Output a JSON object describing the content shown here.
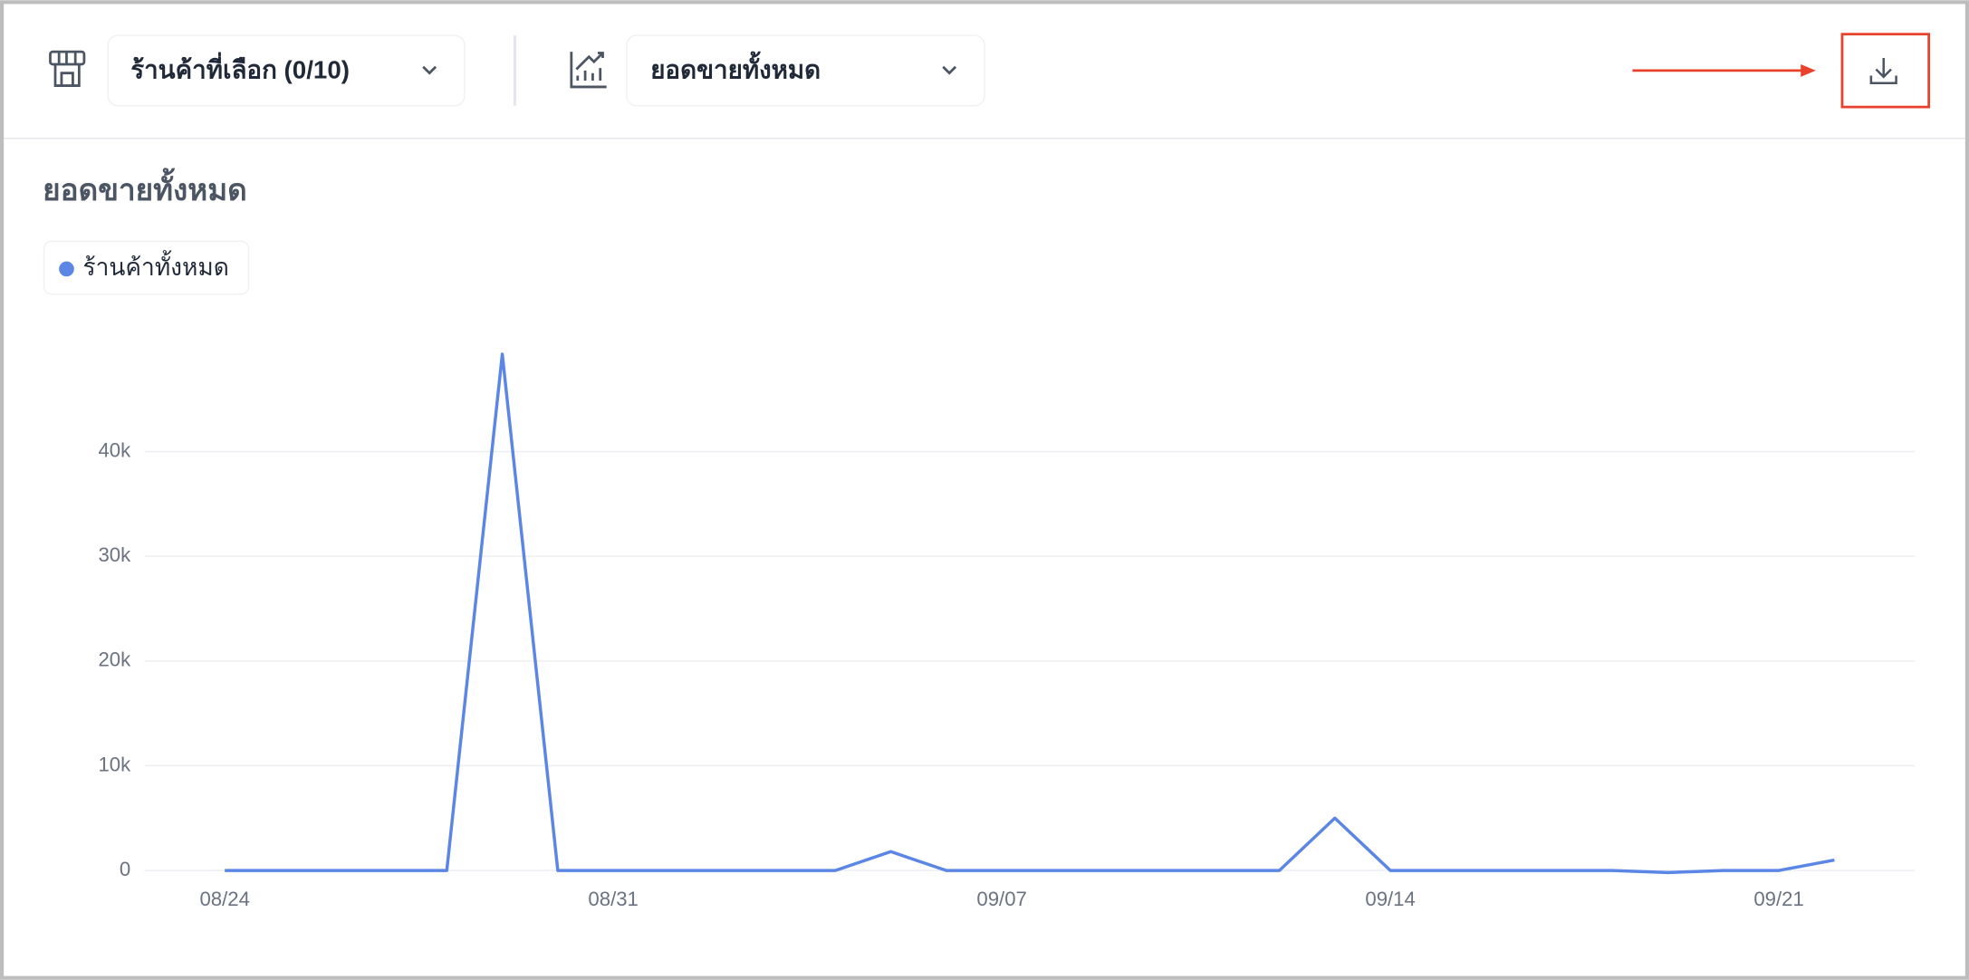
{
  "toolbar": {
    "store_selector": "ร้านค้าที่เลือก (0/10)",
    "metric_selector": "ยอดขายทั้งหมด"
  },
  "chart_data": {
    "type": "line",
    "title": "ยอดขายทั้งหมด",
    "categories": [
      "08/24",
      null,
      null,
      null,
      null,
      null,
      null,
      "08/31",
      null,
      null,
      null,
      null,
      null,
      null,
      "09/07",
      null,
      null,
      null,
      null,
      null,
      null,
      "09/14",
      null,
      null,
      null,
      null,
      null,
      null,
      "09/21",
      null
    ],
    "series": [
      {
        "name": "ร้านค้าทั้งหมด",
        "color": "#5b86e5",
        "values": [
          0,
          0,
          0,
          0,
          0,
          49300,
          0,
          0,
          0,
          0,
          0,
          0,
          1800,
          0,
          0,
          0,
          0,
          0,
          0,
          0,
          5000,
          0,
          0,
          0,
          0,
          0,
          -200,
          0,
          0,
          1000
        ]
      }
    ],
    "ylim": [
      0,
      50000
    ],
    "yticks": [
      0,
      {
        "value": 10000,
        "label": "10k"
      },
      {
        "value": 20000,
        "label": "20k"
      },
      {
        "value": 30000,
        "label": "30k"
      },
      {
        "value": 40000,
        "label": "40k"
      }
    ],
    "grid": true
  }
}
